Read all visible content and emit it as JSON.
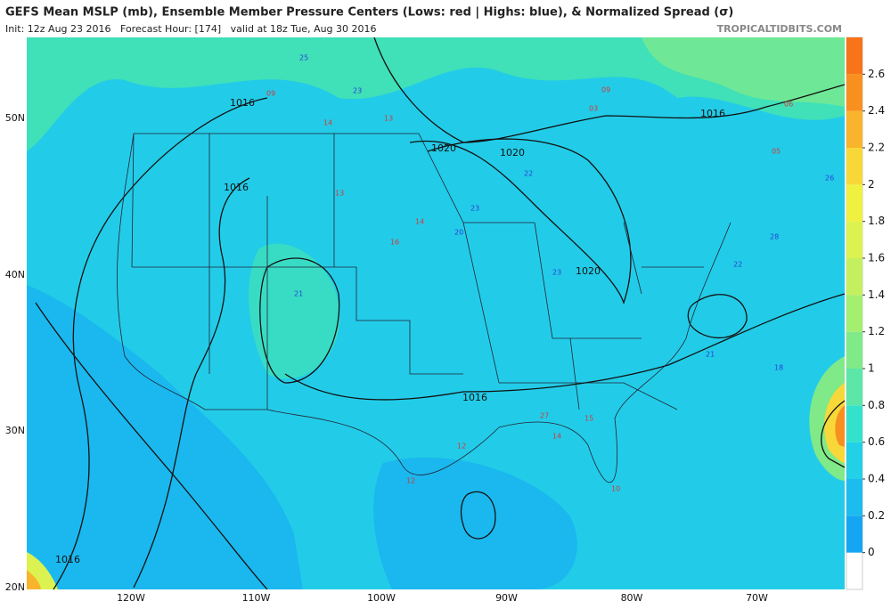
{
  "header": {
    "title": "GEFS Mean MSLP (mb), Ensemble Member Pressure Centers (Lows: red | Highs: blue), & Normalized Spread (σ)",
    "subtitle": "Init: 12z Aug 23 2016   Forecast Hour: [174]   valid at 18z Tue, Aug 30 2016",
    "site": "TROPICALTIDBITS.COM"
  },
  "map": {
    "lat_labels": [
      "50N",
      "40N",
      "30N",
      "20N"
    ],
    "lon_labels": [
      "120W",
      "110W",
      "100W",
      "90W",
      "80W",
      "70W"
    ],
    "isobar_labels": [
      "1016",
      "1016",
      "1020",
      "1020",
      "1020",
      "1016",
      "1016",
      "1016"
    ],
    "low_centers": [
      "09",
      "14",
      "13",
      "05",
      "06",
      "03",
      "13",
      "14",
      "16",
      "12",
      "14",
      "10",
      "09",
      "27",
      "15",
      "12"
    ],
    "high_centers": [
      "25",
      "23",
      "21",
      "20",
      "22",
      "26",
      "18",
      "23",
      "28",
      "23",
      "22",
      "21"
    ]
  },
  "colorbar": {
    "lim": [
      -0.2,
      2.8
    ],
    "ticks": [
      0,
      0.2,
      0.4,
      0.6,
      0.8,
      1,
      1.2,
      1.4,
      1.6,
      1.8,
      2,
      2.2,
      2.4,
      2.6
    ],
    "colors": [
      "#14a6f2",
      "#1cbcee",
      "#22d0e8",
      "#34e2cc",
      "#5ce6a8",
      "#80ea88",
      "#a4ee70",
      "#c4f060",
      "#dcf250",
      "#f0f040",
      "#f8d838",
      "#f8b42c",
      "#f89020",
      "#f87418"
    ]
  }
}
